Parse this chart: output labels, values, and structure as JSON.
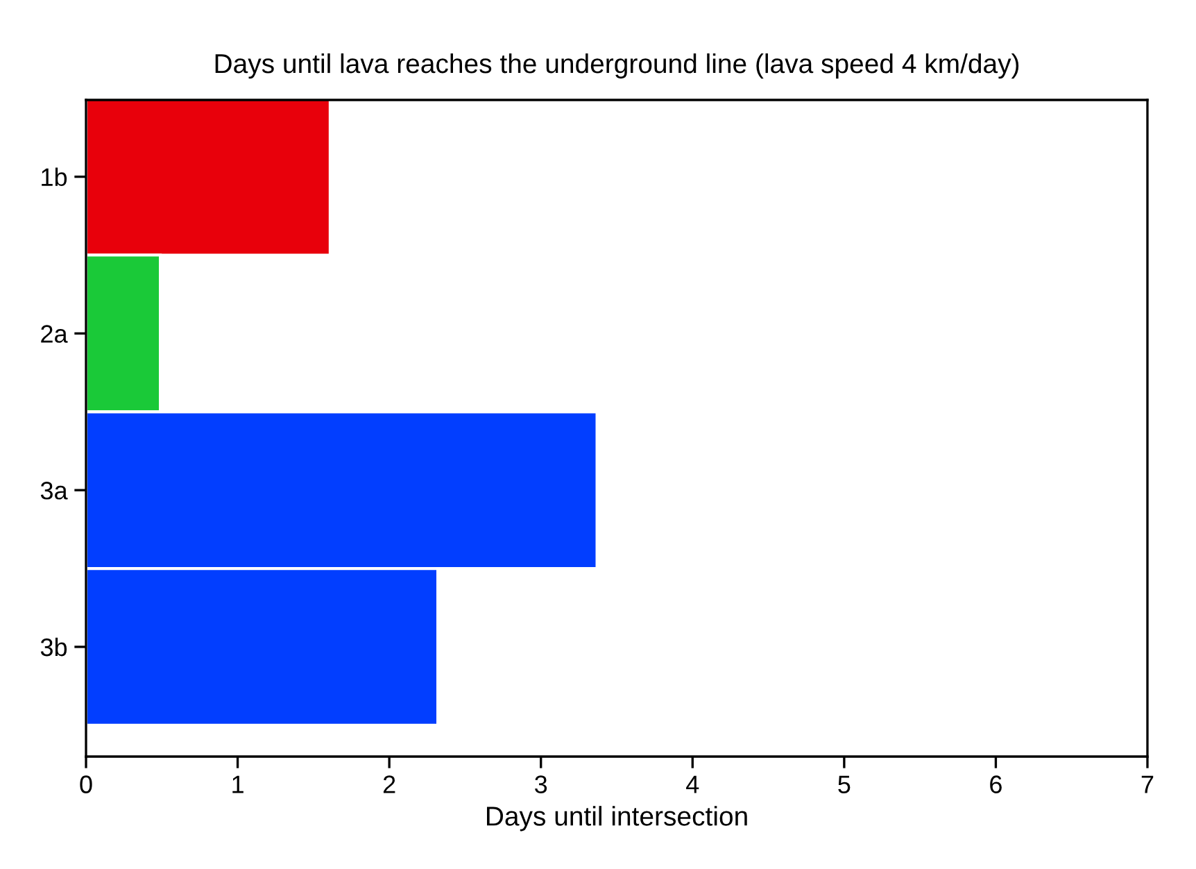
{
  "chart_data": {
    "type": "bar",
    "orientation": "horizontal",
    "title": "Days until lava reaches the underground line (lava speed 4 km/day)",
    "xlabel": "Days until intersection",
    "categories": [
      "1b",
      "2a",
      "3a",
      "3b"
    ],
    "values": [
      1.61,
      0.49,
      3.37,
      2.32
    ],
    "colors": [
      "#e8000b",
      "#1ac938",
      "#023eff",
      "#023eff"
    ],
    "xlim": [
      0,
      7
    ],
    "xticks": [
      0,
      1,
      2,
      3,
      4,
      5,
      6,
      7
    ],
    "grid": false
  }
}
